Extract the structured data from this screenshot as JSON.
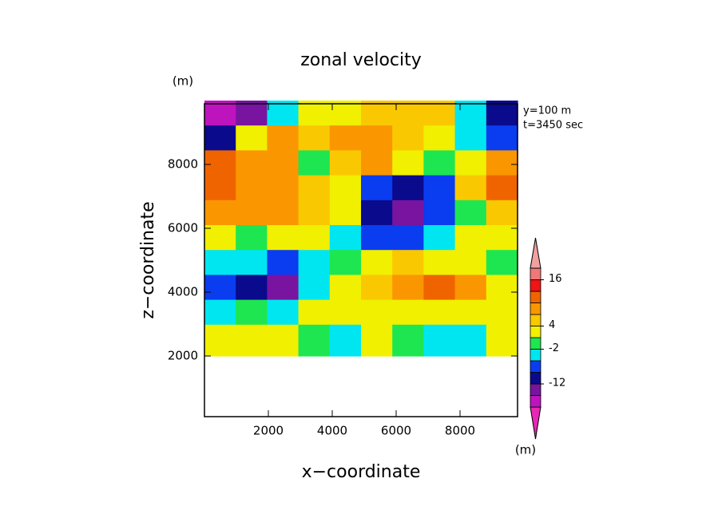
{
  "chart_data": {
    "type": "contour",
    "title": "zonal velocity",
    "x_label": "x−coordinate",
    "y_label": "z−coordinate",
    "y_unit": "(m)",
    "x_unit": "(m)",
    "annotations": [
      "y=100 m",
      "t=3450 sec"
    ],
    "xlim": [
      0,
      9800
    ],
    "ylim": [
      100,
      9900
    ],
    "xticks": [
      2000,
      4000,
      6000,
      8000
    ],
    "yticks": [
      2000,
      4000,
      6000,
      8000
    ],
    "x": [
      490,
      1470,
      2450,
      3430,
      4410,
      5390,
      6370,
      7350,
      8330,
      9310
    ],
    "y": [
      9510,
      8730,
      7950,
      7170,
      6390,
      5610,
      4830,
      4050,
      3270,
      2490
    ],
    "z": [
      [
        -17,
        -13,
        -3,
        2,
        3,
        5,
        6,
        5,
        -4,
        -9
      ],
      [
        -10,
        2,
        7,
        6,
        8,
        7,
        5,
        1,
        -3,
        -6
      ],
      [
        10,
        9,
        7,
        -1,
        6,
        7,
        3,
        -1,
        3,
        8
      ],
      [
        12,
        9,
        8,
        5,
        3,
        -7,
        -11,
        -6,
        4,
        11
      ],
      [
        9,
        8,
        7,
        5,
        1,
        -9,
        -13,
        -8,
        0,
        5
      ],
      [
        3,
        -1,
        3,
        2,
        -3,
        -6,
        -8,
        -3,
        1,
        2
      ],
      [
        -3,
        -4,
        -7,
        -3,
        -2,
        3,
        4,
        3,
        3,
        -1
      ],
      [
        -6,
        -10,
        -14,
        -3,
        2,
        6,
        8,
        10,
        7,
        3
      ],
      [
        -3,
        0,
        -3,
        2,
        3,
        2,
        2,
        3,
        3,
        2
      ],
      [
        2,
        3,
        3,
        -1,
        -3,
        2,
        0,
        -5,
        -3,
        2
      ]
    ],
    "levels": [
      -18,
      -15,
      -12,
      -8,
      -5,
      -2,
      1,
      4,
      7,
      10,
      13,
      16,
      19
    ],
    "colors": [
      "#e628b4",
      "#be14be",
      "#7814a0",
      "#0a0a8c",
      "#0a3cf0",
      "#00e6f0",
      "#1ee650",
      "#f0f000",
      "#fac800",
      "#fa9600",
      "#f06400",
      "#f01414",
      "#f07878",
      "#f0a0a0"
    ],
    "colorbar_ticks": [
      16,
      4,
      -2,
      -12
    ]
  }
}
